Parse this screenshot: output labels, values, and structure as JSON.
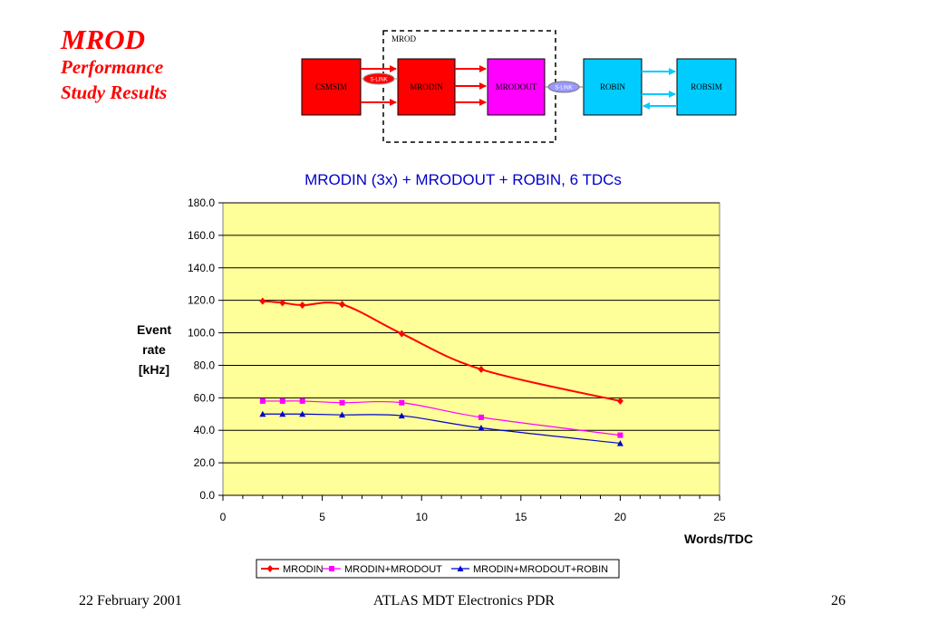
{
  "slide": {
    "title": "MROD",
    "subtitle_line1": "Performance",
    "subtitle_line2": "Study Results"
  },
  "diagram": {
    "group_label": "MROD",
    "blocks": [
      "CSMSIM",
      "MRODIN",
      "MRODOUT",
      "ROBIN",
      "ROBSIM"
    ],
    "links": [
      "S-LINK",
      "S-LINK"
    ],
    "colors": {
      "sim": "#ff0000",
      "mrodin": "#ff0000",
      "mrodout": "#ff00ff",
      "robin": "#00ccff",
      "robsim": "#00ccff",
      "link_red": "#ff0000",
      "link_blue": "#00ccff",
      "slink_red": "#ff0000",
      "slink_blue": "#9999ff"
    }
  },
  "chart_data": {
    "type": "line",
    "title": "MRODIN (3x) + MRODOUT + ROBIN, 6 TDCs",
    "xlabel": "Words/TDC",
    "ylabel": [
      "Event",
      "rate",
      "[kHz]"
    ],
    "xlim": [
      0,
      25
    ],
    "ylim": [
      0,
      180
    ],
    "xticks": [
      "0",
      "5",
      "10",
      "15",
      "20",
      "25"
    ],
    "yticks": [
      "0.0",
      "20.0",
      "40.0",
      "60.0",
      "80.0",
      "100.0",
      "120.0",
      "140.0",
      "160.0",
      "180.0"
    ],
    "grid": "horizontal",
    "legend_position": "bottom",
    "plot_background": "#ffff99",
    "series": [
      {
        "name": "MRODIN",
        "color": "#ff0000",
        "marker": "diamond",
        "x": [
          2,
          3,
          4,
          6,
          9,
          13,
          20
        ],
        "y": [
          119.5,
          118.5,
          117.0,
          117.5,
          99.5,
          77.5,
          58.0
        ]
      },
      {
        "name": "MRODIN+MRODOUT",
        "color": "#ff00ff",
        "marker": "square",
        "x": [
          2,
          3,
          4,
          6,
          9,
          13,
          20
        ],
        "y": [
          58.0,
          58.0,
          58.0,
          57.0,
          57.0,
          48.0,
          37.0
        ]
      },
      {
        "name": "MRODIN+MRODOUT+ROBIN",
        "color": "#0000cc",
        "marker": "triangle",
        "x": [
          2,
          3,
          4,
          6,
          9,
          13,
          20
        ],
        "y": [
          50.0,
          50.0,
          50.0,
          49.5,
          49.0,
          41.5,
          32.0
        ]
      }
    ]
  },
  "footer": {
    "date": "22 February 2001",
    "event": "ATLAS MDT Electronics PDR",
    "page": "26"
  }
}
